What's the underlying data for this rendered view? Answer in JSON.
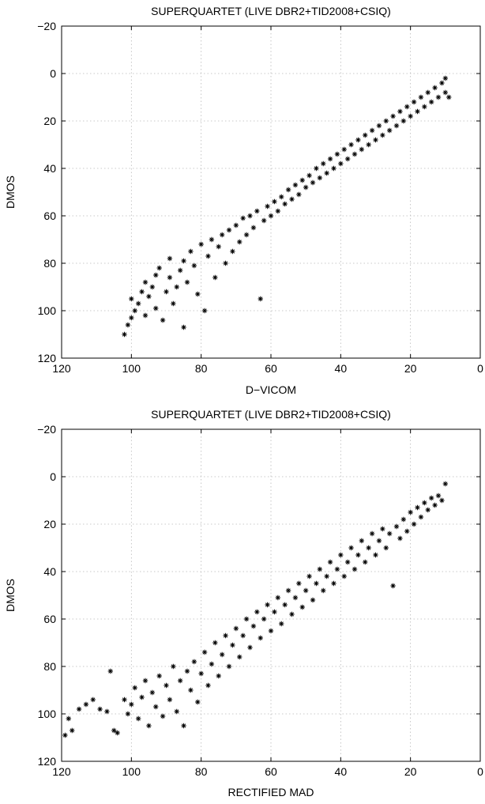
{
  "chart_data": [
    {
      "type": "scatter",
      "title": "SUPERQUARTET (LIVE DBR2+TID2008+CSIQ)",
      "xlabel": "D−VICOM",
      "ylabel": "DMOS",
      "xlim": [
        120,
        0
      ],
      "ylim": [
        -20,
        120
      ],
      "x_reversed": true,
      "y_reversed": true,
      "xticks": [
        120,
        100,
        80,
        60,
        40,
        20,
        0
      ],
      "yticks": [
        -20,
        0,
        20,
        40,
        60,
        80,
        100,
        120
      ],
      "grid": true,
      "marker": "asterisk",
      "marker_color": "#000000",
      "series": [
        {
          "points": [
            [
              102,
              110
            ],
            [
              101,
              106
            ],
            [
              100,
              103
            ],
            [
              100,
              95
            ],
            [
              99,
              100
            ],
            [
              98,
              97
            ],
            [
              97,
              92
            ],
            [
              96,
              88
            ],
            [
              96,
              102
            ],
            [
              95,
              94
            ],
            [
              94,
              90
            ],
            [
              93,
              85
            ],
            [
              93,
              99
            ],
            [
              92,
              82
            ],
            [
              91,
              104
            ],
            [
              90,
              92
            ],
            [
              89,
              86
            ],
            [
              89,
              78
            ],
            [
              88,
              97
            ],
            [
              87,
              90
            ],
            [
              86,
              83
            ],
            [
              85,
              79
            ],
            [
              85,
              107
            ],
            [
              84,
              88
            ],
            [
              83,
              75
            ],
            [
              82,
              81
            ],
            [
              81,
              93
            ],
            [
              80,
              72
            ],
            [
              79,
              100
            ],
            [
              78,
              77
            ],
            [
              77,
              70
            ],
            [
              76,
              86
            ],
            [
              75,
              73
            ],
            [
              74,
              68
            ],
            [
              73,
              80
            ],
            [
              72,
              66
            ],
            [
              71,
              75
            ],
            [
              70,
              64
            ],
            [
              69,
              71
            ],
            [
              68,
              61
            ],
            [
              67,
              68
            ],
            [
              66,
              60
            ],
            [
              65,
              65
            ],
            [
              64,
              58
            ],
            [
              63,
              95
            ],
            [
              62,
              62
            ],
            [
              61,
              56
            ],
            [
              60,
              60
            ],
            [
              59,
              54
            ],
            [
              58,
              58
            ],
            [
              57,
              52
            ],
            [
              56,
              55
            ],
            [
              55,
              49
            ],
            [
              54,
              53
            ],
            [
              53,
              47
            ],
            [
              52,
              51
            ],
            [
              51,
              45
            ],
            [
              50,
              48
            ],
            [
              49,
              43
            ],
            [
              48,
              46
            ],
            [
              47,
              40
            ],
            [
              46,
              44
            ],
            [
              45,
              38
            ],
            [
              44,
              42
            ],
            [
              43,
              36
            ],
            [
              42,
              40
            ],
            [
              41,
              34
            ],
            [
              40,
              38
            ],
            [
              39,
              32
            ],
            [
              38,
              36
            ],
            [
              37,
              30
            ],
            [
              36,
              34
            ],
            [
              35,
              28
            ],
            [
              34,
              32
            ],
            [
              33,
              26
            ],
            [
              32,
              30
            ],
            [
              31,
              24
            ],
            [
              30,
              28
            ],
            [
              29,
              22
            ],
            [
              28,
              26
            ],
            [
              27,
              20
            ],
            [
              26,
              24
            ],
            [
              25,
              18
            ],
            [
              24,
              22
            ],
            [
              23,
              16
            ],
            [
              22,
              20
            ],
            [
              21,
              14
            ],
            [
              20,
              18
            ],
            [
              19,
              12
            ],
            [
              18,
              16
            ],
            [
              17,
              10
            ],
            [
              16,
              14
            ],
            [
              15,
              8
            ],
            [
              14,
              12
            ],
            [
              13,
              6
            ],
            [
              12,
              10
            ],
            [
              11,
              4
            ],
            [
              10,
              8
            ],
            [
              10,
              2
            ],
            [
              9,
              10
            ]
          ]
        }
      ]
    },
    {
      "type": "scatter",
      "title": "SUPERQUARTET (LIVE DBR2+TID2008+CSIQ)",
      "xlabel": "RECTIFIED MAD",
      "ylabel": "DMOS",
      "xlim": [
        120,
        0
      ],
      "ylim": [
        -20,
        120
      ],
      "x_reversed": true,
      "y_reversed": true,
      "xticks": [
        120,
        100,
        80,
        60,
        40,
        20,
        0
      ],
      "yticks": [
        -20,
        0,
        20,
        40,
        60,
        80,
        100,
        120
      ],
      "grid": true,
      "marker": "asterisk",
      "marker_color": "#000000",
      "series": [
        {
          "points": [
            [
              119,
              109
            ],
            [
              118,
              102
            ],
            [
              117,
              107
            ],
            [
              115,
              98
            ],
            [
              113,
              96
            ],
            [
              111,
              94
            ],
            [
              109,
              98
            ],
            [
              107,
              99
            ],
            [
              106,
              82
            ],
            [
              105,
              107
            ],
            [
              104,
              108
            ],
            [
              102,
              94
            ],
            [
              101,
              100
            ],
            [
              100,
              96
            ],
            [
              99,
              89
            ],
            [
              98,
              102
            ],
            [
              97,
              93
            ],
            [
              96,
              86
            ],
            [
              95,
              105
            ],
            [
              94,
              91
            ],
            [
              93,
              97
            ],
            [
              92,
              84
            ],
            [
              91,
              101
            ],
            [
              90,
              88
            ],
            [
              89,
              94
            ],
            [
              88,
              80
            ],
            [
              87,
              99
            ],
            [
              86,
              86
            ],
            [
              85,
              105
            ],
            [
              84,
              82
            ],
            [
              83,
              90
            ],
            [
              82,
              78
            ],
            [
              81,
              95
            ],
            [
              80,
              83
            ],
            [
              79,
              74
            ],
            [
              78,
              88
            ],
            [
              77,
              79
            ],
            [
              76,
              70
            ],
            [
              75,
              84
            ],
            [
              74,
              75
            ],
            [
              73,
              67
            ],
            [
              72,
              80
            ],
            [
              71,
              71
            ],
            [
              70,
              64
            ],
            [
              69,
              76
            ],
            [
              68,
              67
            ],
            [
              67,
              60
            ],
            [
              66,
              72
            ],
            [
              65,
              63
            ],
            [
              64,
              57
            ],
            [
              63,
              68
            ],
            [
              62,
              60
            ],
            [
              61,
              54
            ],
            [
              60,
              65
            ],
            [
              59,
              57
            ],
            [
              58,
              51
            ],
            [
              57,
              62
            ],
            [
              56,
              54
            ],
            [
              55,
              48
            ],
            [
              54,
              58
            ],
            [
              53,
              51
            ],
            [
              52,
              45
            ],
            [
              51,
              55
            ],
            [
              50,
              48
            ],
            [
              49,
              42
            ],
            [
              48,
              52
            ],
            [
              47,
              45
            ],
            [
              46,
              39
            ],
            [
              45,
              48
            ],
            [
              44,
              42
            ],
            [
              43,
              36
            ],
            [
              42,
              45
            ],
            [
              41,
              39
            ],
            [
              40,
              33
            ],
            [
              39,
              42
            ],
            [
              38,
              36
            ],
            [
              37,
              30
            ],
            [
              36,
              39
            ],
            [
              35,
              33
            ],
            [
              34,
              27
            ],
            [
              33,
              36
            ],
            [
              32,
              30
            ],
            [
              31,
              24
            ],
            [
              30,
              33
            ],
            [
              29,
              27
            ],
            [
              28,
              22
            ],
            [
              27,
              30
            ],
            [
              26,
              24
            ],
            [
              25,
              46
            ],
            [
              24,
              21
            ],
            [
              23,
              26
            ],
            [
              22,
              18
            ],
            [
              21,
              23
            ],
            [
              20,
              15
            ],
            [
              19,
              20
            ],
            [
              18,
              13
            ],
            [
              17,
              17
            ],
            [
              16,
              11
            ],
            [
              15,
              14
            ],
            [
              14,
              9
            ],
            [
              13,
              12
            ],
            [
              12,
              8
            ],
            [
              11,
              10
            ],
            [
              10,
              3
            ]
          ]
        }
      ]
    }
  ]
}
